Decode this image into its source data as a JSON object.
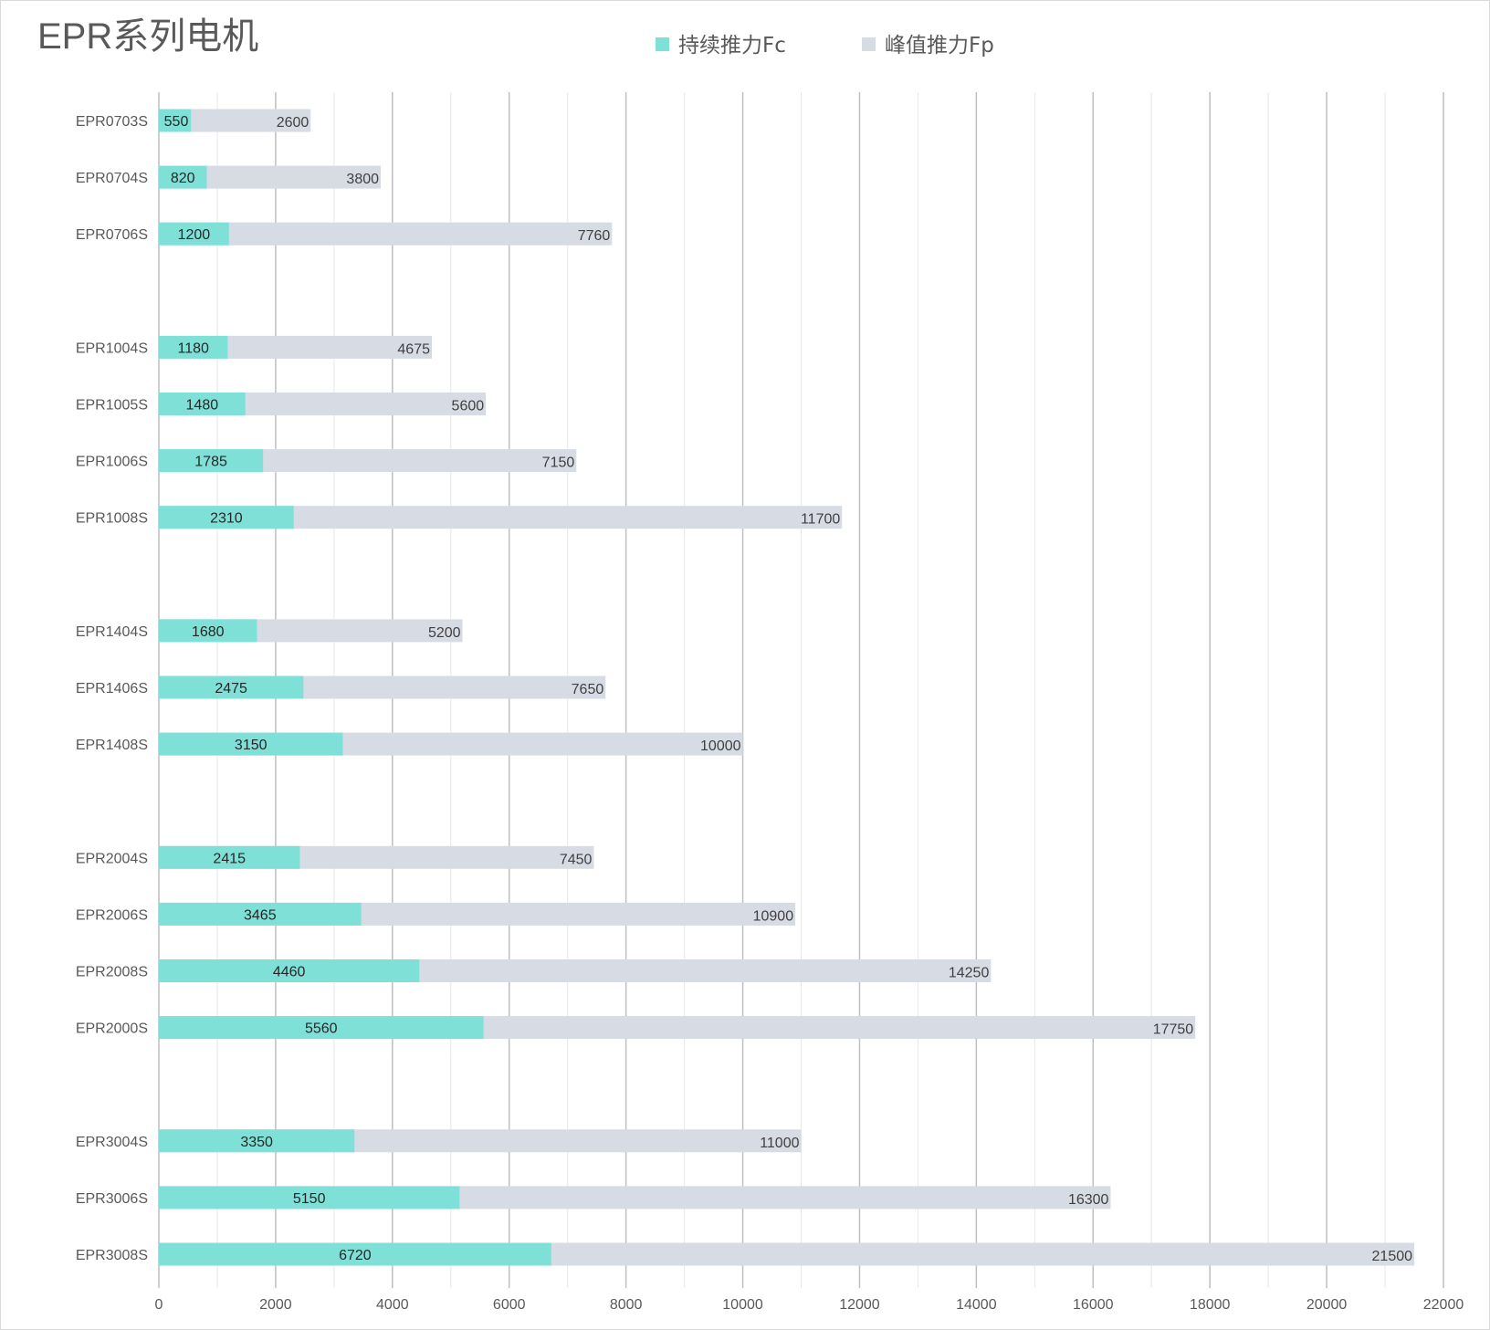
{
  "chart_data": {
    "type": "bar",
    "orientation": "horizontal",
    "title": "EPR系列电机",
    "legend_position": "top",
    "xlim": [
      0,
      22000
    ],
    "x_ticks": [
      0,
      2000,
      4000,
      6000,
      8000,
      10000,
      12000,
      14000,
      16000,
      18000,
      20000,
      22000
    ],
    "grid": true,
    "series": [
      {
        "name": "持续推力Fc",
        "color": "#7fe0d8"
      },
      {
        "name": "峰值推力Fp",
        "color": "#d6dbe4"
      }
    ],
    "groups": [
      {
        "items": [
          {
            "category": "EPR0703S",
            "fc": 550,
            "fp": 2600
          },
          {
            "category": "EPR0704S",
            "fc": 820,
            "fp": 3800
          },
          {
            "category": "EPR0706S",
            "fc": 1200,
            "fp": 7760
          }
        ]
      },
      {
        "items": [
          {
            "category": "EPR1004S",
            "fc": 1180,
            "fp": 4675
          },
          {
            "category": "EPR1005S",
            "fc": 1480,
            "fp": 5600
          },
          {
            "category": "EPR1006S",
            "fc": 1785,
            "fp": 7150
          },
          {
            "category": "EPR1008S",
            "fc": 2310,
            "fp": 11700
          }
        ]
      },
      {
        "items": [
          {
            "category": "EPR1404S",
            "fc": 1680,
            "fp": 5200
          },
          {
            "category": "EPR1406S",
            "fc": 2475,
            "fp": 7650
          },
          {
            "category": "EPR1408S",
            "fc": 3150,
            "fp": 10000
          }
        ]
      },
      {
        "items": [
          {
            "category": "EPR2004S",
            "fc": 2415,
            "fp": 7450
          },
          {
            "category": "EPR2006S",
            "fc": 3465,
            "fp": 10900
          },
          {
            "category": "EPR2008S",
            "fc": 4460,
            "fp": 14250
          },
          {
            "category": "EPR2000S",
            "fc": 5560,
            "fp": 17750
          }
        ]
      },
      {
        "items": [
          {
            "category": "EPR3004S",
            "fc": 3350,
            "fp": 11000
          },
          {
            "category": "EPR3006S",
            "fc": 5150,
            "fp": 16300
          },
          {
            "category": "EPR3008S",
            "fc": 6720,
            "fp": 21500
          }
        ]
      }
    ]
  }
}
